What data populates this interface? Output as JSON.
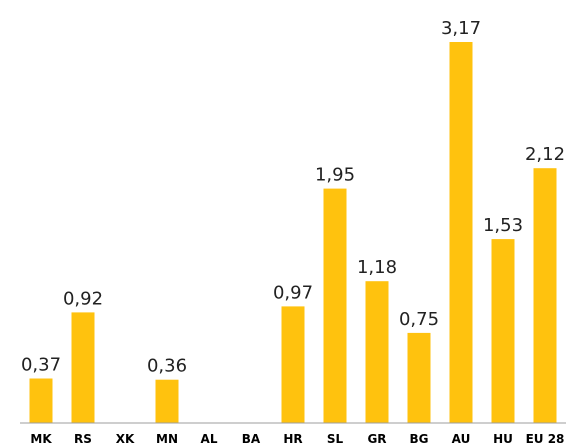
{
  "chart_data": {
    "type": "bar",
    "categories": [
      "MK",
      "RS",
      "XK",
      "MN",
      "AL",
      "BA",
      "HR",
      "SL",
      "GR",
      "BG",
      "AU",
      "HU",
      "EU 28"
    ],
    "values": [
      0.37,
      0.92,
      null,
      0.36,
      null,
      null,
      0.97,
      1.95,
      1.18,
      0.75,
      3.17,
      1.53,
      2.12
    ],
    "data_labels": [
      "0,37",
      "0,92",
      "",
      "0,36",
      "",
      "",
      "0,97",
      "1,95",
      "1,18",
      "0,75",
      "3,17",
      "1,53",
      "2,12"
    ],
    "title": "",
    "xlabel": "",
    "ylabel": "",
    "ylim": [
      0,
      3.2
    ],
    "grid": false,
    "legend": "none",
    "bar_color": "#FFC20E",
    "axis_color": "#9E9E9E"
  }
}
